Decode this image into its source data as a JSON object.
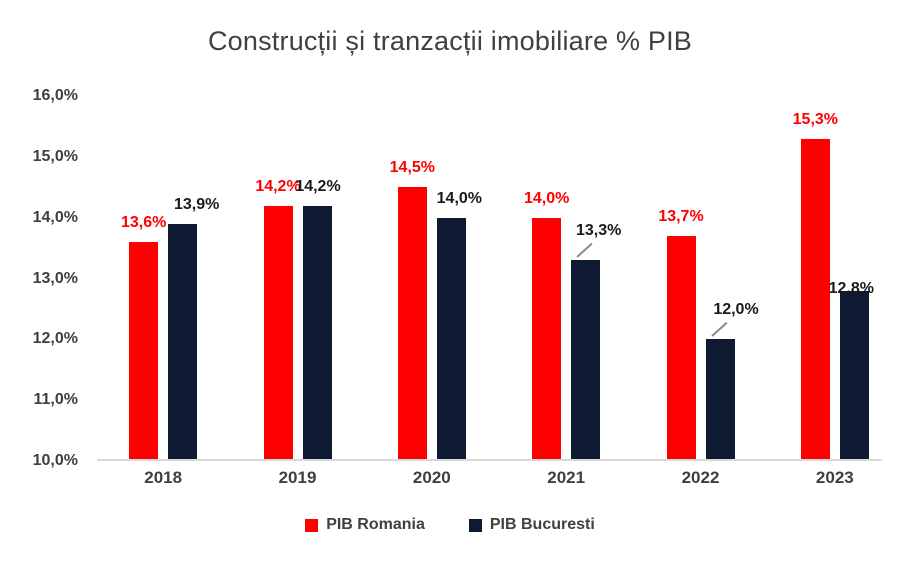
{
  "title": "Construcții și tranzacții imobiliare % PIB",
  "chart_data": {
    "type": "bar",
    "title": "Construcții și tranzacții imobiliare % PIB",
    "categories": [
      "2018",
      "2019",
      "2020",
      "2021",
      "2022",
      "2023"
    ],
    "series": [
      {
        "name": "PIB Romania",
        "color": "#fe0000",
        "values": [
          13.6,
          14.2,
          14.5,
          14.0,
          13.7,
          15.3
        ],
        "labels": [
          "13,6%",
          "14,2%",
          "14,5%",
          "14,0%",
          "13,7%",
          "15,3%"
        ]
      },
      {
        "name": "PIB Bucuresti",
        "color": "#0e1a32",
        "values": [
          13.9,
          14.2,
          14.0,
          13.3,
          12.0,
          12.8
        ],
        "labels": [
          "13,9%",
          "14,2%",
          "14,0%",
          "13,3%",
          "12,0%",
          "12,8%"
        ]
      }
    ],
    "ylim": [
      10,
      16
    ],
    "ytick_labels": [
      "16,0%",
      "15,0%",
      "14,0%",
      "13,0%",
      "12,0%",
      "11,0%",
      "10,0%"
    ],
    "grid": false,
    "legend_position": "bottom"
  },
  "colors": {
    "romania_red": "#fe0000",
    "bucuresti_navy": "#0e1a32",
    "axis_text": "#3f3f3f",
    "axis_line": "#d9d9d9",
    "title_text": "#404040",
    "dark_label": "#1a1a1a"
  },
  "legend": {
    "items": [
      {
        "label": "PIB Romania",
        "color": "#fe0000"
      },
      {
        "label": "PIB Bucuresti",
        "color": "#0e1a32"
      }
    ]
  }
}
